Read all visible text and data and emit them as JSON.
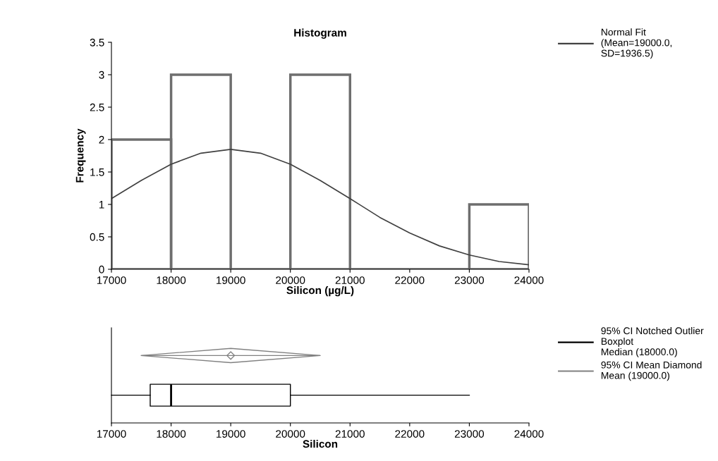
{
  "chart_data": [
    {
      "type": "histogram",
      "title": "Histogram",
      "xlabel": "Silicon (µg/L)",
      "ylabel": "Frequency",
      "bins": [
        17000,
        18000,
        19000,
        20000,
        21000,
        22000,
        23000,
        24000
      ],
      "values": [
        2,
        3,
        0,
        3,
        0,
        0,
        1
      ],
      "color": "#6e6e6e",
      "series": [
        {
          "name": "Normal Fit\n(Mean=19000.0,\nSD=1936.5)",
          "type": "line",
          "color": "#404040",
          "x": [
            17000,
            17500,
            18000,
            18500,
            19000,
            19500,
            20000,
            20500,
            21000,
            21500,
            22000,
            22500,
            23000,
            23500,
            24000
          ],
          "values": [
            1.09,
            1.37,
            1.62,
            1.79,
            1.85,
            1.79,
            1.62,
            1.37,
            1.09,
            0.8,
            0.56,
            0.36,
            0.22,
            0.12,
            0.07
          ]
        }
      ],
      "xlim": [
        17000,
        24000
      ],
      "xticks": [
        17000,
        18000,
        19000,
        20000,
        21000,
        22000,
        23000,
        24000
      ],
      "ylim": [
        0,
        3.5
      ],
      "yticks": [
        0,
        0.5,
        1,
        1.5,
        2,
        2.5,
        3,
        3.5
      ],
      "grid": false,
      "legend": "top right"
    },
    {
      "type": "box",
      "orientation": "horizontal",
      "xlabel": "Silicon",
      "categories": [
        null,
        null
      ],
      "series": [
        {
          "name": "95% CI Notched Outlier\nBoxplot\nMedian (18000.0)",
          "type": "box",
          "color": "#000000",
          "boxes": [
            null,
            {
              "low": 17000,
              "q1": 17650,
              "median": 18000,
              "q3": 20000,
              "high": 23000
            }
          ]
        },
        {
          "name": "95% CI Mean Diamond\nMean (19000.0)",
          "type": "scatter",
          "marker": "diamond",
          "color": "#808080",
          "values": [
            19000,
            null
          ],
          "errors": [
            [
              17500,
              20500
            ],
            null
          ]
        }
      ],
      "xlim": [
        17000,
        24000
      ],
      "xticks": [
        17000,
        18000,
        19000,
        20000,
        21000,
        22000,
        23000,
        24000
      ],
      "grid": false,
      "legend": "top right"
    }
  ]
}
